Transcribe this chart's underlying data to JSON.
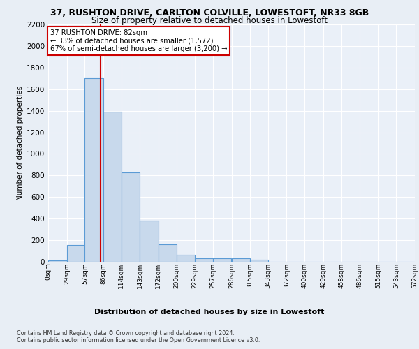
{
  "title_line1": "37, RUSHTON DRIVE, CARLTON COLVILLE, LOWESTOFT, NR33 8GB",
  "title_line2": "Size of property relative to detached houses in Lowestoft",
  "xlabel": "Distribution of detached houses by size in Lowestoft",
  "ylabel": "Number of detached properties",
  "bin_edges": [
    0,
    29,
    57,
    86,
    114,
    143,
    172,
    200,
    229,
    257,
    286,
    315,
    343,
    372,
    400,
    429,
    458,
    486,
    515,
    543,
    572
  ],
  "bar_heights": [
    15,
    155,
    1700,
    1390,
    830,
    380,
    160,
    65,
    35,
    30,
    30,
    20,
    0,
    0,
    0,
    0,
    0,
    0,
    0,
    0
  ],
  "bar_color": "#c8d9ec",
  "bar_edge_color": "#5b9bd5",
  "property_size": 82,
  "property_line_color": "#cc0000",
  "annotation_text": "37 RUSHTON DRIVE: 82sqm\n← 33% of detached houses are smaller (1,572)\n67% of semi-detached houses are larger (3,200) →",
  "annotation_box_color": "#cc0000",
  "ylim": [
    0,
    2200
  ],
  "yticks": [
    0,
    200,
    400,
    600,
    800,
    1000,
    1200,
    1400,
    1600,
    1800,
    2000,
    2200
  ],
  "footer_line1": "Contains HM Land Registry data © Crown copyright and database right 2024.",
  "footer_line2": "Contains public sector information licensed under the Open Government Licence v3.0.",
  "bg_color": "#e8eef5",
  "plot_bg_color": "#eaf0f8"
}
